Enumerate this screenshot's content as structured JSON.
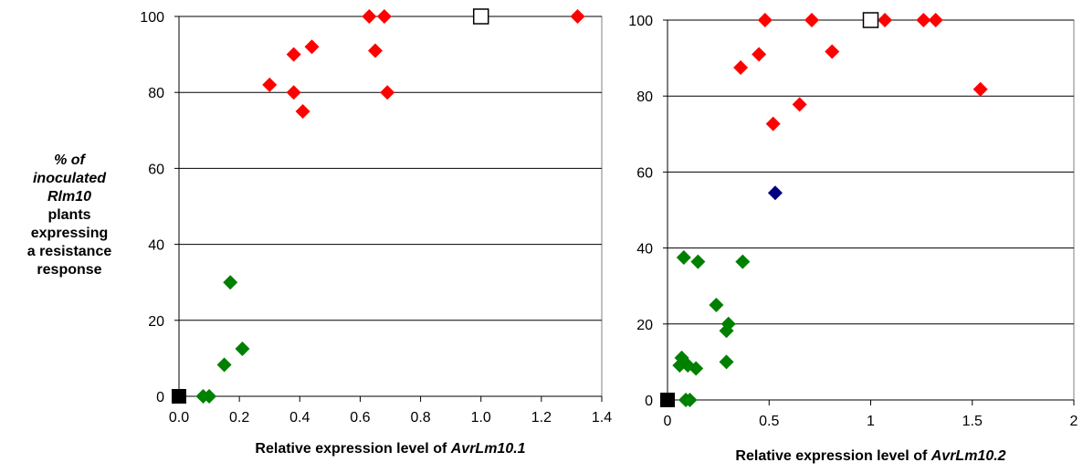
{
  "y_axis_label": {
    "line1": "% of",
    "line2": "inoculated",
    "line3": "Rlm10",
    "line4": "plants",
    "line5": "expressing",
    "line6": "a resistance",
    "line7": "response"
  },
  "chart_data": [
    {
      "type": "scatter",
      "title": "",
      "xlabel_prefix": "Relative expression level of ",
      "xlabel_gene": "AvrLm10.1",
      "ylabel": "% of inoculated Rlm10 plants expressing a resistance response",
      "xlim": [
        0,
        1.4
      ],
      "ylim": [
        0,
        100
      ],
      "xticks": [
        0,
        0.2,
        0.4,
        0.6,
        0.8,
        1.0,
        1.2,
        1.4
      ],
      "xtick_labels": [
        "0.0",
        "0.2",
        "0.4",
        "0.6",
        "0.8",
        "1.0",
        "1.2",
        "1.4"
      ],
      "yticks": [
        0,
        20,
        40,
        60,
        80,
        100
      ],
      "ytick_labels": [
        "0",
        "20",
        "40",
        "60",
        "80",
        "100"
      ],
      "grid": "horizontal",
      "series": [
        {
          "color": "#ff0000",
          "marker": "diamond",
          "points": [
            [
              0.3,
              82
            ],
            [
              0.38,
              90
            ],
            [
              0.38,
              80
            ],
            [
              0.41,
              75
            ],
            [
              0.44,
              92
            ],
            [
              0.63,
              100
            ],
            [
              0.68,
              100
            ],
            [
              0.65,
              91
            ],
            [
              0.69,
              80
            ],
            [
              1.32,
              100
            ]
          ]
        },
        {
          "color": "#008000",
          "marker": "diamond",
          "points": [
            [
              0.17,
              30
            ],
            [
              0.21,
              12.5
            ],
            [
              0.15,
              8.3
            ],
            [
              0.08,
              0
            ],
            [
              0.1,
              0
            ]
          ]
        },
        {
          "color": "#000000",
          "marker": "square-filled",
          "points": [
            [
              0,
              0
            ]
          ]
        },
        {
          "color": "#000000",
          "marker": "square-open",
          "points": [
            [
              1.0,
              100
            ]
          ]
        }
      ]
    },
    {
      "type": "scatter",
      "title": "",
      "xlabel_prefix": "Relative expression level of ",
      "xlabel_gene": "AvrLm10.2",
      "xlim": [
        0,
        2
      ],
      "ylim": [
        0,
        100
      ],
      "xticks": [
        0,
        0.5,
        1,
        1.5,
        2
      ],
      "xtick_labels": [
        "0",
        "0.5",
        "1",
        "1.5",
        "2"
      ],
      "yticks": [
        0,
        20,
        40,
        60,
        80,
        100
      ],
      "ytick_labels": [
        "0",
        "20",
        "40",
        "60",
        "80",
        "100"
      ],
      "grid": "horizontal",
      "series": [
        {
          "color": "#ff0000",
          "marker": "diamond",
          "points": [
            [
              0.48,
              100
            ],
            [
              0.71,
              100
            ],
            [
              1.07,
              100
            ],
            [
              1.26,
              100
            ],
            [
              1.32,
              100
            ],
            [
              0.36,
              87.5
            ],
            [
              0.45,
              91
            ],
            [
              0.81,
              91.7
            ],
            [
              0.52,
              72.7
            ],
            [
              0.65,
              77.8
            ],
            [
              1.54,
              81.8
            ]
          ]
        },
        {
          "color": "#000080",
          "marker": "diamond",
          "points": [
            [
              0.53,
              54.5
            ]
          ]
        },
        {
          "color": "#008000",
          "marker": "diamond",
          "points": [
            [
              0.08,
              37.5
            ],
            [
              0.15,
              36.4
            ],
            [
              0.37,
              36.4
            ],
            [
              0.24,
              25
            ],
            [
              0.3,
              20
            ],
            [
              0.29,
              18.2
            ],
            [
              0.07,
              11.1
            ],
            [
              0.06,
              9.1
            ],
            [
              0.1,
              9.1
            ],
            [
              0.14,
              8.3
            ],
            [
              0.29,
              10
            ],
            [
              0.09,
              0
            ],
            [
              0.11,
              0
            ]
          ]
        },
        {
          "color": "#000000",
          "marker": "square-filled",
          "points": [
            [
              0,
              0
            ]
          ]
        },
        {
          "color": "#000000",
          "marker": "square-open",
          "points": [
            [
              1.0,
              100
            ]
          ]
        }
      ]
    }
  ]
}
